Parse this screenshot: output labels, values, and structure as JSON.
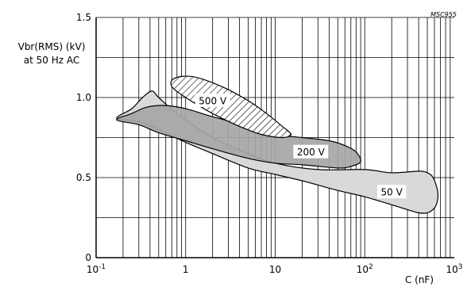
{
  "chart_data": {
    "type": "area",
    "figure_code": "MSC955",
    "ylabel_lines": [
      "Vbr(RMS) (kV)",
      "at 50 Hz AC"
    ],
    "xlabel": "C (nF)",
    "x_scale": "log",
    "xlim": [
      0.1,
      1000
    ],
    "ylim": [
      0,
      1.5
    ],
    "y_ticks": [
      "0",
      "0.5",
      "1.0",
      "1.5"
    ],
    "x_ticks": [
      {
        "value": 0.1,
        "base": "10",
        "exp": "-1"
      },
      {
        "value": 1,
        "base": "1",
        "exp": ""
      },
      {
        "value": 10,
        "base": "10",
        "exp": ""
      },
      {
        "value": 100,
        "base": "10",
        "exp": "2"
      },
      {
        "value": 1000,
        "base": "10",
        "exp": "3"
      }
    ],
    "grid": true,
    "colors": {
      "v50": "#d9d9d9",
      "v200": "#a6a6a6",
      "v500_hatch": "#000000"
    },
    "series": [
      {
        "name": "50 V",
        "label_at": [
          200,
          0.41
        ],
        "points": [
          [
            0.17,
            0.87
          ],
          [
            0.25,
            0.93
          ],
          [
            0.33,
            1.0
          ],
          [
            0.42,
            1.04
          ],
          [
            0.5,
            1.0
          ],
          [
            0.8,
            0.9
          ],
          [
            2,
            0.75
          ],
          [
            5,
            0.65
          ],
          [
            10,
            0.59
          ],
          [
            30,
            0.55
          ],
          [
            100,
            0.55
          ],
          [
            200,
            0.53
          ],
          [
            400,
            0.54
          ],
          [
            500,
            0.53
          ],
          [
            580,
            0.5
          ],
          [
            650,
            0.42
          ],
          [
            650,
            0.36
          ],
          [
            600,
            0.31
          ],
          [
            500,
            0.28
          ],
          [
            400,
            0.28
          ],
          [
            300,
            0.3
          ],
          [
            200,
            0.33
          ],
          [
            100,
            0.38
          ],
          [
            50,
            0.42
          ],
          [
            20,
            0.48
          ],
          [
            10,
            0.52
          ],
          [
            5,
            0.56
          ],
          [
            2,
            0.65
          ],
          [
            1,
            0.72
          ],
          [
            0.5,
            0.8
          ],
          [
            0.3,
            0.85
          ]
        ]
      },
      {
        "name": "200 V",
        "label_at": [
          25,
          0.66
        ],
        "points": [
          [
            0.17,
            0.86
          ],
          [
            0.25,
            0.9
          ],
          [
            0.37,
            0.94
          ],
          [
            0.6,
            0.95
          ],
          [
            1,
            0.93
          ],
          [
            2,
            0.88
          ],
          [
            5,
            0.82
          ],
          [
            10,
            0.77
          ],
          [
            20,
            0.75
          ],
          [
            40,
            0.73
          ],
          [
            60,
            0.7
          ],
          [
            80,
            0.66
          ],
          [
            90,
            0.6
          ],
          [
            70,
            0.57
          ],
          [
            50,
            0.56
          ],
          [
            20,
            0.58
          ],
          [
            10,
            0.59
          ],
          [
            5,
            0.62
          ],
          [
            2,
            0.68
          ],
          [
            1,
            0.73
          ],
          [
            0.5,
            0.78
          ],
          [
            0.3,
            0.83
          ]
        ]
      },
      {
        "name": "500 V",
        "label_at": [
          2,
          0.98
        ],
        "points": [
          [
            0.75,
            1.12
          ],
          [
            1.2,
            1.13
          ],
          [
            2.5,
            1.07
          ],
          [
            5,
            0.98
          ],
          [
            8,
            0.9
          ],
          [
            12,
            0.82
          ],
          [
            15,
            0.77
          ],
          [
            12,
            0.75
          ],
          [
            7,
            0.77
          ],
          [
            4,
            0.82
          ],
          [
            2,
            0.9
          ],
          [
            1,
            1.0
          ],
          [
            0.7,
            1.07
          ]
        ]
      }
    ]
  }
}
